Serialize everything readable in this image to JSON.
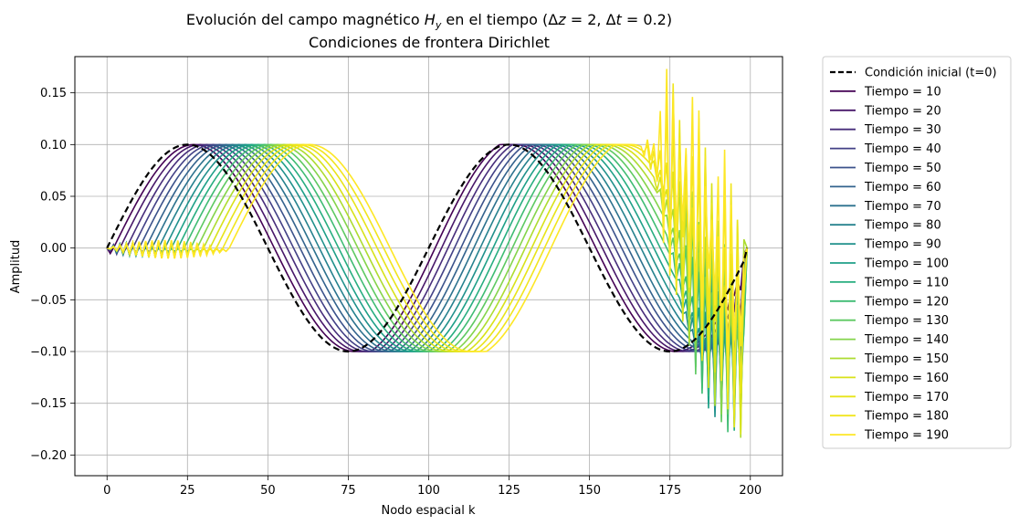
{
  "chart_data": {
    "type": "line",
    "title": "Evolución del campo magnético H_y en el tiempo (Δz = 2, Δt = 0.2)",
    "title_parts": {
      "pre": "Evolución del campo magnético ",
      "var_base": "H",
      "var_sub": "y",
      "post": " en el tiempo (Δ",
      "dz_var": "z",
      "dz_val": " = 2, Δ",
      "dt_var": "t",
      "dt_val": " = 0.2)"
    },
    "subtitle": "Condiciones de frontera Dirichlet",
    "xlabel": "Nodo espacial k",
    "ylabel": "Amplitud",
    "xlim": [
      -10,
      210
    ],
    "ylim": [
      -0.22,
      0.185
    ],
    "xticks": [
      0,
      25,
      50,
      75,
      100,
      125,
      150,
      175,
      200
    ],
    "xtick_labels": [
      "0",
      "25",
      "50",
      "75",
      "100",
      "125",
      "150",
      "175",
      "200"
    ],
    "yticks": [
      -0.2,
      -0.15,
      -0.1,
      -0.05,
      0.0,
      0.05,
      0.1,
      0.15
    ],
    "ytick_labels": [
      "−0.20",
      "−0.15",
      "−0.10",
      "−0.05",
      "0.00",
      "0.05",
      "0.10",
      "0.15"
    ],
    "grid": true,
    "legend_position": "outside-right",
    "initial_condition": {
      "name": "Condición inicial (t=0)",
      "formula": "0.1*sin(2*pi*k/100) for k = 0..199",
      "style": "dashed",
      "color": "#000000"
    },
    "series": [
      {
        "name": "Tiempo = 10",
        "time": 10,
        "shift": 2,
        "color": "#440154"
      },
      {
        "name": "Tiempo = 20",
        "time": 20,
        "shift": 4,
        "color": "#48186a"
      },
      {
        "name": "Tiempo = 30",
        "time": 30,
        "shift": 6,
        "color": "#472d7b"
      },
      {
        "name": "Tiempo = 40",
        "time": 40,
        "shift": 8,
        "color": "#424086"
      },
      {
        "name": "Tiempo = 50",
        "time": 50,
        "shift": 10,
        "color": "#3b528b"
      },
      {
        "name": "Tiempo = 60",
        "time": 60,
        "shift": 12,
        "color": "#33638d"
      },
      {
        "name": "Tiempo = 70",
        "time": 70,
        "shift": 14,
        "color": "#2c728e"
      },
      {
        "name": "Tiempo = 80",
        "time": 80,
        "shift": 16,
        "color": "#26828e"
      },
      {
        "name": "Tiempo = 90",
        "time": 90,
        "shift": 18,
        "color": "#21918c"
      },
      {
        "name": "Tiempo = 100",
        "time": 100,
        "shift": 20,
        "color": "#1fa088"
      },
      {
        "name": "Tiempo = 110",
        "time": 110,
        "shift": 22,
        "color": "#28ae80"
      },
      {
        "name": "Tiempo = 120",
        "time": 120,
        "shift": 24,
        "color": "#3fbc73"
      },
      {
        "name": "Tiempo = 130",
        "time": 130,
        "shift": 26,
        "color": "#5ec962"
      },
      {
        "name": "Tiempo = 140",
        "time": 140,
        "shift": 28,
        "color": "#84d44b"
      },
      {
        "name": "Tiempo = 150",
        "time": 150,
        "shift": 30,
        "color": "#addc30"
      },
      {
        "name": "Tiempo = 160",
        "time": 160,
        "shift": 32,
        "color": "#d8e219"
      },
      {
        "name": "Tiempo = 170",
        "time": 170,
        "shift": 34,
        "color": "#e8e419"
      },
      {
        "name": "Tiempo = 180",
        "time": 180,
        "shift": 36,
        "color": "#f1e51d"
      },
      {
        "name": "Tiempo = 190",
        "time": 190,
        "shift": 38,
        "color": "#fde725"
      }
    ],
    "notes": "Cada curva es una onda sinusoidal de amplitud 0.1 y período 100 desplazada hacia la derecha; entre k=0 y k≈38 aparecen pequeñas oscilaciones (±0.01) y cerca de k=165..199 oscilaciones de alta frecuencia con picos hasta ≈0.17 y mínimos hasta ≈−0.20."
  }
}
